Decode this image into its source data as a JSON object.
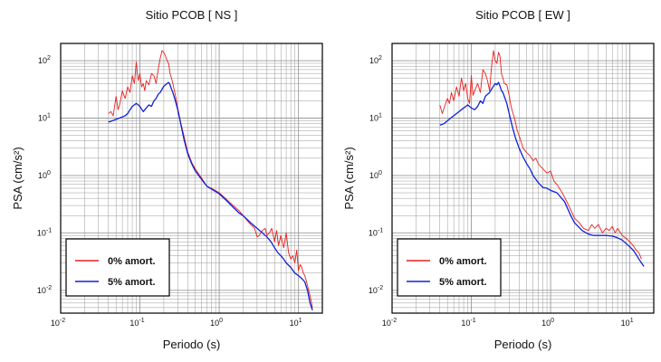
{
  "colors": {
    "undamped": "#e82020",
    "damped": "#1020d8",
    "grid": "#9a9a9a",
    "frame": "#000000"
  },
  "chart_data": [
    {
      "type": "line",
      "title": "Sitio PCOB [ NS ]",
      "xlabel": "Periodo (s)",
      "ylabel": "PSA (cm/s²)",
      "xscale": "log",
      "yscale": "log",
      "xlim": [
        0.01,
        20
      ],
      "ylim": [
        0.004,
        200
      ],
      "grid": true,
      "legend_position": "bottom-left",
      "x_ticks": [
        {
          "base": "10",
          "exp": "-2"
        },
        {
          "base": "10",
          "exp": "-1"
        },
        {
          "base": "10",
          "exp": "0"
        },
        {
          "base": "10",
          "exp": "1"
        }
      ],
      "y_ticks": [
        {
          "base": "10",
          "exp": "-2"
        },
        {
          "base": "10",
          "exp": "-1"
        },
        {
          "base": "10",
          "exp": "0"
        },
        {
          "base": "10",
          "exp": "1"
        },
        {
          "base": "10",
          "exp": "2"
        }
      ],
      "series": [
        {
          "name": "0% amort.",
          "color": "#e82020",
          "x": [
            0.04,
            0.043,
            0.046,
            0.05,
            0.053,
            0.056,
            0.06,
            0.065,
            0.07,
            0.075,
            0.08,
            0.085,
            0.09,
            0.095,
            0.1,
            0.105,
            0.11,
            0.115,
            0.12,
            0.13,
            0.14,
            0.15,
            0.16,
            0.17,
            0.18,
            0.19,
            0.2,
            0.21,
            0.22,
            0.23,
            0.24,
            0.25,
            0.26,
            0.28,
            0.3,
            0.33,
            0.36,
            0.4,
            0.45,
            0.5,
            0.6,
            0.7,
            0.8,
            1.0,
            1.2,
            1.5,
            1.8,
            2.0,
            2.2,
            2.5,
            2.8,
            3.0,
            3.2,
            3.5,
            3.8,
            4.0,
            4.3,
            4.6,
            5.0,
            5.3,
            5.6,
            6.0,
            6.5,
            7.0,
            7.5,
            8.0,
            8.5,
            9.0,
            9.5,
            10,
            10.5,
            11,
            11.5,
            12,
            12.5,
            13,
            14,
            15
          ],
          "y": [
            12,
            13,
            11,
            24,
            14,
            18,
            30,
            22,
            35,
            28,
            55,
            40,
            95,
            45,
            60,
            35,
            40,
            30,
            45,
            38,
            60,
            55,
            40,
            70,
            110,
            150,
            140,
            120,
            100,
            90,
            60,
            50,
            40,
            25,
            15,
            8,
            4.8,
            2.6,
            1.7,
            1.3,
            0.9,
            0.65,
            0.6,
            0.5,
            0.4,
            0.3,
            0.24,
            0.2,
            0.17,
            0.14,
            0.12,
            0.085,
            0.09,
            0.11,
            0.12,
            0.09,
            0.1,
            0.12,
            0.07,
            0.11,
            0.06,
            0.09,
            0.055,
            0.1,
            0.045,
            0.035,
            0.04,
            0.03,
            0.05,
            0.022,
            0.028,
            0.025,
            0.02,
            0.018,
            0.015,
            0.012,
            0.008,
            0.005
          ]
        },
        {
          "name": "5% amort.",
          "color": "#1020d8",
          "x": [
            0.04,
            0.045,
            0.05,
            0.055,
            0.06,
            0.065,
            0.07,
            0.075,
            0.08,
            0.085,
            0.09,
            0.095,
            0.1,
            0.11,
            0.12,
            0.13,
            0.14,
            0.15,
            0.16,
            0.17,
            0.18,
            0.19,
            0.2,
            0.21,
            0.22,
            0.23,
            0.24,
            0.25,
            0.26,
            0.28,
            0.3,
            0.33,
            0.36,
            0.4,
            0.45,
            0.5,
            0.6,
            0.7,
            0.8,
            1.0,
            1.2,
            1.5,
            1.8,
            2.0,
            2.5,
            3.0,
            3.5,
            4.0,
            4.5,
            5.0,
            5.5,
            6.0,
            6.5,
            7.0,
            8.0,
            9.0,
            10,
            11,
            12,
            13,
            14,
            15
          ],
          "y": [
            8.5,
            9,
            9.5,
            10,
            10.5,
            11,
            12,
            14,
            16,
            17,
            18,
            17,
            16,
            13,
            15,
            17,
            16,
            20,
            22,
            26,
            28,
            32,
            36,
            38,
            40,
            42,
            38,
            32,
            28,
            20,
            14,
            7.5,
            4.2,
            2.4,
            1.6,
            1.2,
            0.85,
            0.65,
            0.58,
            0.48,
            0.38,
            0.28,
            0.22,
            0.2,
            0.15,
            0.12,
            0.1,
            0.085,
            0.07,
            0.055,
            0.045,
            0.04,
            0.035,
            0.03,
            0.025,
            0.02,
            0.018,
            0.016,
            0.014,
            0.01,
            0.006,
            0.0045
          ]
        }
      ]
    },
    {
      "type": "line",
      "title": "Sitio PCOB [ EW ]",
      "xlabel": "Periodo (s)",
      "ylabel": "PSA (cm/s²)",
      "xscale": "log",
      "yscale": "log",
      "xlim": [
        0.01,
        20
      ],
      "ylim": [
        0.004,
        200
      ],
      "grid": true,
      "legend_position": "bottom-left",
      "x_ticks": [
        {
          "base": "10",
          "exp": "-2"
        },
        {
          "base": "10",
          "exp": "-1"
        },
        {
          "base": "10",
          "exp": "0"
        },
        {
          "base": "10",
          "exp": "1"
        }
      ],
      "y_ticks": [
        {
          "base": "10",
          "exp": "-2"
        },
        {
          "base": "10",
          "exp": "-1"
        },
        {
          "base": "10",
          "exp": "0"
        },
        {
          "base": "10",
          "exp": "1"
        },
        {
          "base": "10",
          "exp": "2"
        }
      ],
      "series": [
        {
          "name": "0% amort.",
          "color": "#e82020",
          "x": [
            0.04,
            0.043,
            0.046,
            0.05,
            0.053,
            0.056,
            0.06,
            0.065,
            0.07,
            0.075,
            0.08,
            0.085,
            0.09,
            0.095,
            0.1,
            0.105,
            0.11,
            0.12,
            0.13,
            0.14,
            0.15,
            0.16,
            0.17,
            0.18,
            0.19,
            0.2,
            0.21,
            0.22,
            0.23,
            0.24,
            0.25,
            0.26,
            0.28,
            0.3,
            0.32,
            0.35,
            0.38,
            0.4,
            0.45,
            0.5,
            0.55,
            0.6,
            0.65,
            0.7,
            0.8,
            0.9,
            1.0,
            1.1,
            1.2,
            1.4,
            1.6,
            1.8,
            2.0,
            2.3,
            2.6,
            3.0,
            3.3,
            3.6,
            4.0,
            4.5,
            5.0,
            5.5,
            6.0,
            6.5,
            7.0,
            8.0,
            9.0,
            10,
            11,
            12,
            13,
            14
          ],
          "y": [
            17,
            12,
            16,
            22,
            18,
            28,
            20,
            35,
            24,
            50,
            30,
            40,
            22,
            18,
            55,
            25,
            30,
            40,
            28,
            70,
            60,
            45,
            30,
            80,
            150,
            100,
            90,
            140,
            120,
            60,
            50,
            40,
            38,
            25,
            15,
            10,
            6,
            5,
            3,
            2.5,
            2.2,
            1.8,
            2.0,
            1.6,
            1.3,
            1.1,
            1.2,
            0.8,
            0.7,
            0.5,
            0.35,
            0.25,
            0.18,
            0.15,
            0.12,
            0.11,
            0.14,
            0.12,
            0.14,
            0.1,
            0.12,
            0.11,
            0.13,
            0.1,
            0.12,
            0.09,
            0.08,
            0.07,
            0.06,
            0.05,
            0.045,
            0.035
          ]
        },
        {
          "name": "5% amort.",
          "color": "#1020d8",
          "x": [
            0.04,
            0.045,
            0.05,
            0.055,
            0.06,
            0.065,
            0.07,
            0.075,
            0.08,
            0.085,
            0.09,
            0.095,
            0.1,
            0.11,
            0.12,
            0.13,
            0.14,
            0.15,
            0.16,
            0.17,
            0.18,
            0.19,
            0.2,
            0.21,
            0.22,
            0.23,
            0.24,
            0.25,
            0.26,
            0.28,
            0.3,
            0.33,
            0.36,
            0.4,
            0.45,
            0.5,
            0.55,
            0.6,
            0.7,
            0.8,
            0.9,
            1.0,
            1.2,
            1.5,
            1.8,
            2.0,
            2.5,
            3.0,
            3.5,
            4.0,
            5.0,
            6.0,
            7.0,
            8.0,
            9.0,
            10,
            11,
            12,
            13,
            14,
            15
          ],
          "y": [
            7.5,
            8,
            9,
            10,
            11,
            12,
            13,
            14,
            15,
            16,
            17,
            16,
            15,
            14,
            16,
            20,
            18,
            24,
            26,
            28,
            32,
            36,
            40,
            38,
            42,
            36,
            30,
            28,
            24,
            18,
            12,
            7,
            4.5,
            3,
            2.1,
            1.6,
            1.3,
            1.0,
            0.75,
            0.62,
            0.6,
            0.55,
            0.5,
            0.35,
            0.2,
            0.15,
            0.11,
            0.095,
            0.09,
            0.09,
            0.09,
            0.088,
            0.082,
            0.075,
            0.065,
            0.057,
            0.05,
            0.042,
            0.035,
            0.03,
            0.026
          ]
        }
      ]
    }
  ]
}
